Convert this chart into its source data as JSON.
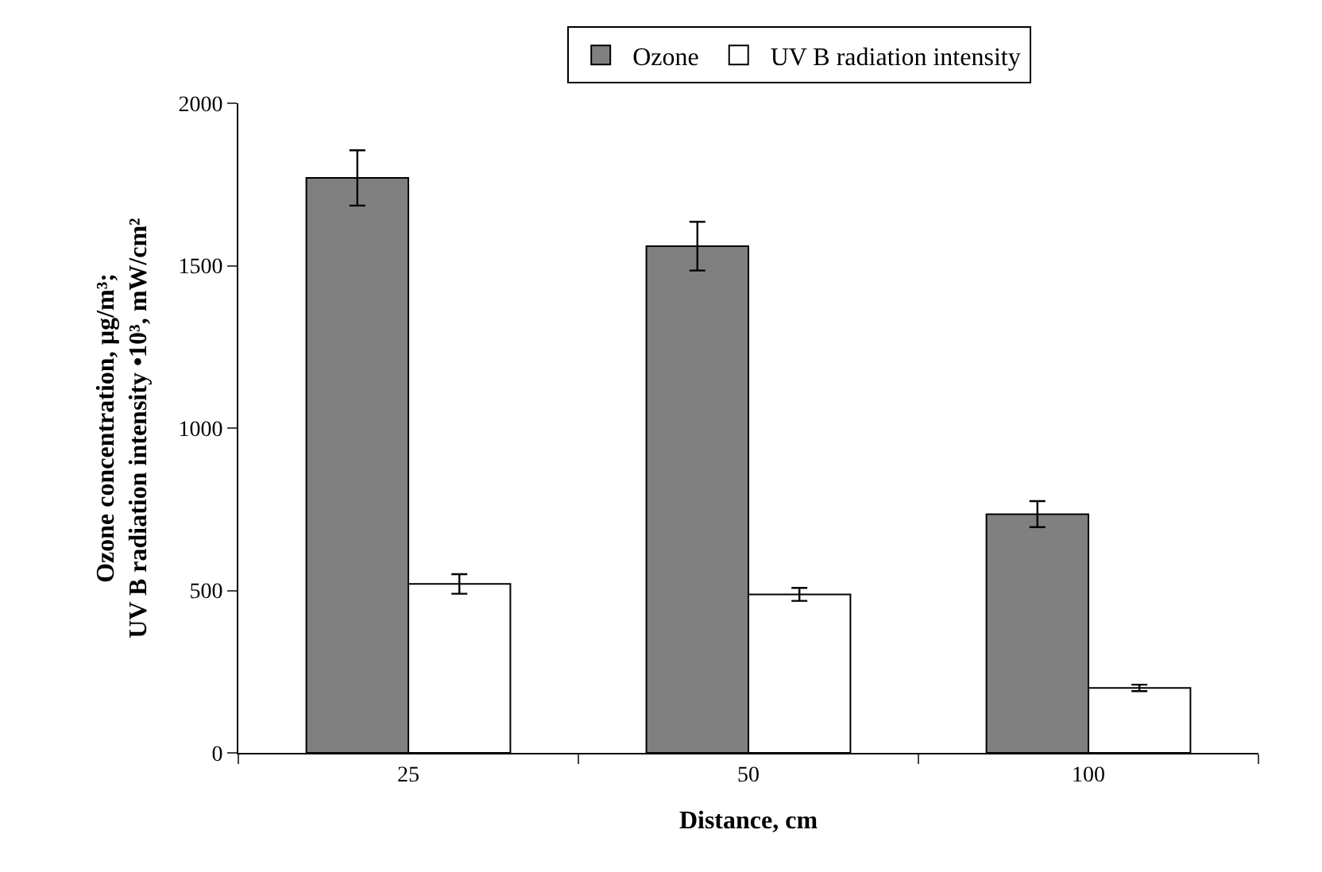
{
  "chart_data": {
    "type": "bar",
    "xlabel": "Distance, cm",
    "ylabel": "Ozone concentration, µg/m³;\nUV B radiation intensity •10³, mW/cm²",
    "categories": [
      "25",
      "50",
      "100"
    ],
    "series": [
      {
        "name": "Ozone",
        "color": "#808080",
        "values": [
          1770,
          1560,
          735
        ],
        "errors": [
          85,
          75,
          40
        ]
      },
      {
        "name": "UV B radiation intensity",
        "color": "#ffffff",
        "values": [
          520,
          488,
          200
        ],
        "errors": [
          30,
          20,
          10
        ]
      }
    ],
    "ylim": [
      0,
      2000
    ],
    "yticks": [
      0,
      500,
      1000,
      1500,
      2000
    ],
    "legend": "top"
  }
}
